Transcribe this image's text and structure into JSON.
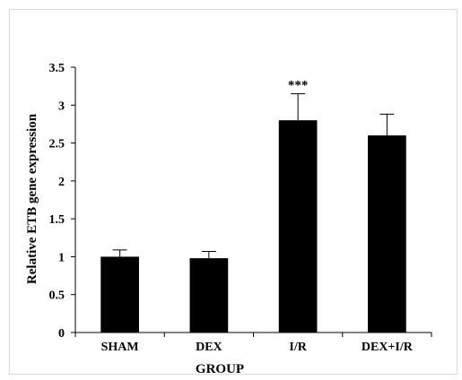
{
  "chart_data": {
    "type": "bar",
    "categories": [
      "SHAM",
      "DEX",
      "I/R",
      "DEX+I/R"
    ],
    "values": [
      1.0,
      0.98,
      2.8,
      2.6
    ],
    "errors": [
      0.09,
      0.09,
      0.35,
      0.28
    ],
    "annotations": [
      {
        "category": "I/R",
        "text": "***"
      }
    ],
    "title": "",
    "xlabel": "GROUP",
    "ylabel": "Relative ETB gene expression",
    "ylim": [
      0,
      3.5
    ],
    "yticks": [
      "0",
      "0.5",
      "1",
      "1.5",
      "2",
      "2.5",
      "3",
      "3.5"
    ],
    "grid": false,
    "legend": "none",
    "bar_color": "#000000"
  }
}
